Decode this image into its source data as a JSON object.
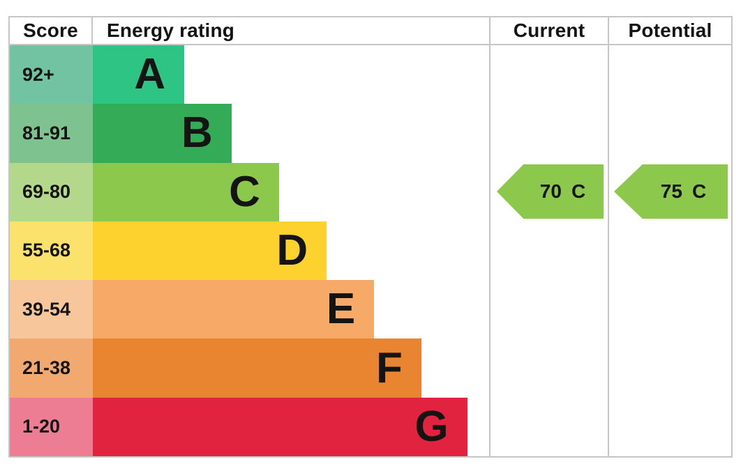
{
  "header": {
    "score": "Score",
    "energy_rating": "Energy rating",
    "current": "Current",
    "potential": "Potential"
  },
  "chart_data": {
    "type": "bar",
    "subtype": "epc-energy-rating",
    "orientation": "horizontal",
    "column_headers": [
      "Score",
      "Energy rating",
      "Current",
      "Potential"
    ],
    "bands": [
      {
        "letter": "A",
        "score_range": "92+",
        "bar_color": "#2ec483",
        "score_cell_color": "#72c3a1",
        "bar_length_pct": 23.1
      },
      {
        "letter": "B",
        "score_range": "81-91",
        "bar_color": "#33ab57",
        "score_cell_color": "#7ec38f",
        "bar_length_pct": 35.0
      },
      {
        "letter": "C",
        "score_range": "69-80",
        "bar_color": "#8cc84b",
        "score_cell_color": "#b3d88b",
        "bar_length_pct": 47.0
      },
      {
        "letter": "D",
        "score_range": "55-68",
        "bar_color": "#fdd22e",
        "score_cell_color": "#fae26d",
        "bar_length_pct": 59.0
      },
      {
        "letter": "E",
        "score_range": "39-54",
        "bar_color": "#f7a967",
        "score_cell_color": "#f8c69b",
        "bar_length_pct": 71.0
      },
      {
        "letter": "F",
        "score_range": "21-38",
        "bar_color": "#e98430",
        "score_cell_color": "#f2a96f",
        "bar_length_pct": 82.9
      },
      {
        "letter": "G",
        "score_range": "1-20",
        "bar_color": "#e1233f",
        "score_cell_color": "#ed7d92",
        "bar_length_pct": 94.5
      }
    ],
    "current": {
      "value": "70",
      "band": "C",
      "band_index": 2,
      "arrow_color": "#8cc84b"
    },
    "potential": {
      "value": "75",
      "band": "C",
      "band_index": 2,
      "arrow_color": "#8cc84b"
    },
    "border_color": "#c6c6c6"
  }
}
